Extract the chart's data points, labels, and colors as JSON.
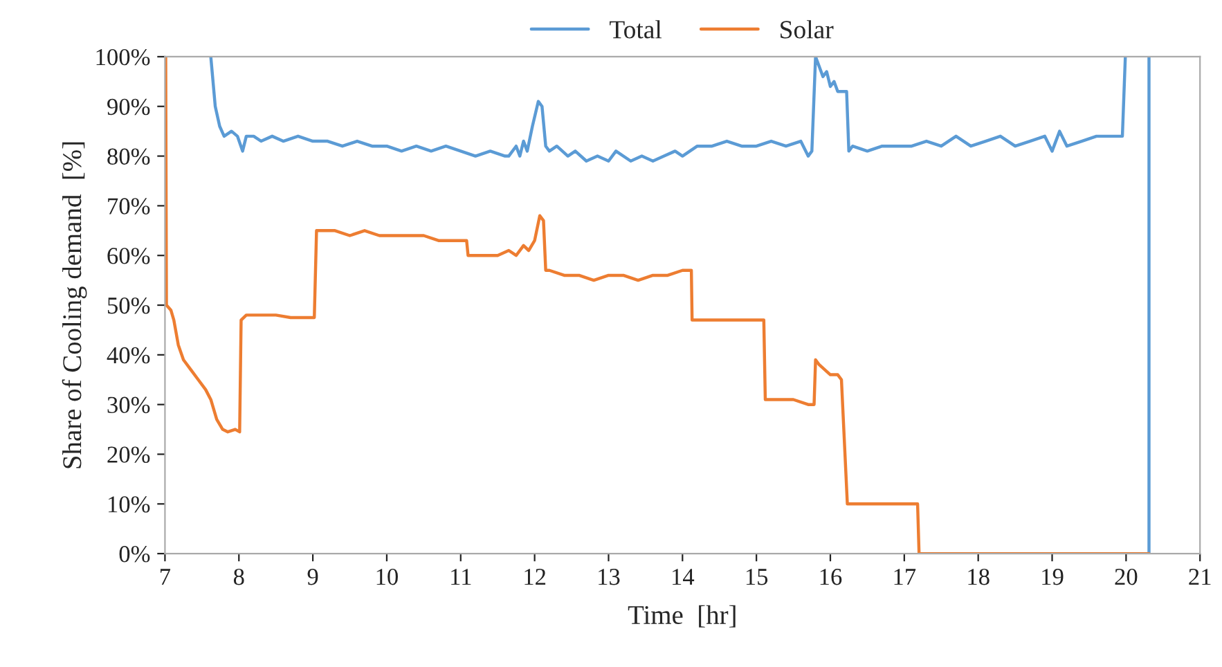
{
  "chart_data": {
    "type": "line",
    "xlabel": "Time  [hr]",
    "ylabel": "Share of Cooling demand  [%]",
    "xlim": [
      7,
      21
    ],
    "xticks": [
      7,
      8,
      9,
      10,
      11,
      12,
      13,
      14,
      15,
      16,
      17,
      18,
      19,
      20,
      21
    ],
    "ylim": [
      0,
      100
    ],
    "yticks": [
      {
        "value": 0,
        "label": "0%"
      },
      {
        "value": 10,
        "label": "10%"
      },
      {
        "value": 20,
        "label": "20%"
      },
      {
        "value": 30,
        "label": "30%"
      },
      {
        "value": 40,
        "label": "40%"
      },
      {
        "value": 50,
        "label": "50%"
      },
      {
        "value": 60,
        "label": "60%"
      },
      {
        "value": 70,
        "label": "70%"
      },
      {
        "value": 80,
        "label": "80%"
      },
      {
        "value": 90,
        "label": "90%"
      },
      {
        "value": 100,
        "label": "100%"
      }
    ],
    "grid": false,
    "legend": "top",
    "marker": "none",
    "line_style": "solid",
    "series": [
      {
        "name": "Total",
        "color": "#5b9bd5",
        "x": [
          7.62,
          7.68,
          7.74,
          7.8,
          7.9,
          7.98,
          8.05,
          8.1,
          8.2,
          8.3,
          8.45,
          8.6,
          8.8,
          9.0,
          9.2,
          9.4,
          9.6,
          9.8,
          10.0,
          10.2,
          10.4,
          10.6,
          10.8,
          11.0,
          11.2,
          11.4,
          11.6,
          11.65,
          11.75,
          11.8,
          11.85,
          11.9,
          11.97,
          12.05,
          12.1,
          12.15,
          12.2,
          12.3,
          12.45,
          12.55,
          12.7,
          12.85,
          13.0,
          13.1,
          13.3,
          13.45,
          13.6,
          13.75,
          13.9,
          14.0,
          14.2,
          14.4,
          14.6,
          14.8,
          15.0,
          15.2,
          15.4,
          15.6,
          15.7,
          15.75,
          15.8,
          15.85,
          15.9,
          15.95,
          16.0,
          16.05,
          16.1,
          16.22,
          16.25,
          16.3,
          16.5,
          16.7,
          16.9,
          17.1,
          17.3,
          17.5,
          17.7,
          17.9,
          18.1,
          18.3,
          18.5,
          18.7,
          18.9,
          19.0,
          19.1,
          19.2,
          19.4,
          19.6,
          19.8,
          19.95,
          19.99,
          20.05,
          20.31,
          20.31
        ],
        "values": [
          100,
          90,
          86,
          84,
          85,
          84,
          81,
          84,
          84,
          83,
          84,
          83,
          84,
          83,
          83,
          82,
          83,
          82,
          82,
          81,
          82,
          81,
          82,
          81,
          80,
          81,
          80,
          80,
          82,
          80,
          83,
          81,
          86,
          91,
          90,
          82,
          81,
          82,
          80,
          81,
          79,
          80,
          79,
          81,
          79,
          80,
          79,
          80,
          81,
          80,
          82,
          82,
          83,
          82,
          82,
          83,
          82,
          83,
          80,
          81,
          100,
          98,
          96,
          97,
          94,
          95,
          93,
          93,
          81,
          82,
          81,
          82,
          82,
          82,
          83,
          82,
          84,
          82,
          83,
          84,
          82,
          83,
          84,
          81,
          85,
          82,
          83,
          84,
          84,
          84,
          100,
          null,
          100,
          0
        ]
      },
      {
        "name": "Solar",
        "color": "#ed7d31",
        "x": [
          7.0,
          7.01,
          7.02,
          7.08,
          7.12,
          7.18,
          7.25,
          7.35,
          7.45,
          7.55,
          7.62,
          7.7,
          7.78,
          7.85,
          7.95,
          8.01,
          8.03,
          8.1,
          8.3,
          8.5,
          8.7,
          8.9,
          9.02,
          9.05,
          9.15,
          9.3,
          9.5,
          9.7,
          9.9,
          10.1,
          10.3,
          10.5,
          10.7,
          10.9,
          11.08,
          11.1,
          11.3,
          11.5,
          11.65,
          11.75,
          11.85,
          11.92,
          12.0,
          12.07,
          12.12,
          12.15,
          12.2,
          12.4,
          12.6,
          12.8,
          13.0,
          13.2,
          13.4,
          13.6,
          13.8,
          14.0,
          14.12,
          14.13,
          14.3,
          14.5,
          14.7,
          14.9,
          15.1,
          15.12,
          15.3,
          15.5,
          15.7,
          15.78,
          15.8,
          15.85,
          16.0,
          16.1,
          16.15,
          16.23,
          16.3,
          16.6,
          16.9,
          17.18,
          17.2,
          18.0,
          19.0,
          20.31
        ],
        "values": [
          100,
          100,
          50,
          49,
          47,
          42,
          39,
          37,
          35,
          33,
          31,
          27,
          25,
          24.5,
          25,
          24.5,
          47,
          48,
          48,
          48,
          47.5,
          47.5,
          47.5,
          65,
          65,
          65,
          64,
          65,
          64,
          64,
          64,
          64,
          63,
          63,
          63,
          60,
          60,
          60,
          61,
          60,
          62,
          61,
          63,
          68,
          67,
          57,
          57,
          56,
          56,
          55,
          56,
          56,
          55,
          56,
          56,
          57,
          57,
          47,
          47,
          47,
          47,
          47,
          47,
          31,
          31,
          31,
          30,
          30,
          39,
          38,
          36,
          36,
          35,
          10,
          10,
          10,
          10,
          10,
          0,
          0,
          0,
          0
        ]
      }
    ]
  }
}
